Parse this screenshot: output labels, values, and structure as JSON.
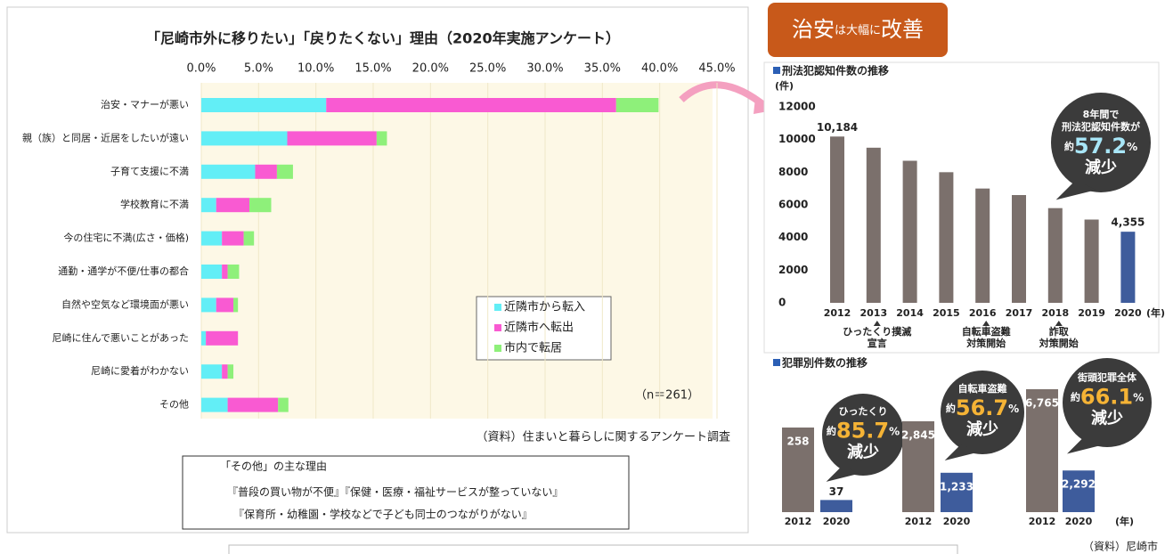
{
  "header": {
    "badge_main": "治安",
    "badge_small": "は大幅に",
    "badge_end": "改善"
  },
  "chart_data": [
    {
      "type": "bar",
      "orientation": "horizontal",
      "stacked": true,
      "title": "「尼崎市外に移りたい」「戻りたくない」理由（2020年実施アンケート）",
      "categories": [
        "治安・マナーが悪い",
        "親（族）と同居・近居をしたいが遠い",
        "子育て支援に不満",
        "学校教育に不満",
        "今の住宅に不満(広さ・価格)",
        "通勤・通学が不便/仕事の都合",
        "自然や空気など環境面が悪い",
        "尼崎に住んで悪いことがあった",
        "尼崎に愛着がわかない",
        "その他"
      ],
      "series": [
        {
          "name": "近隣市から転入",
          "color": "#62eef6",
          "values": [
            10.9,
            7.5,
            4.7,
            1.3,
            1.8,
            1.8,
            1.3,
            0.4,
            1.8,
            2.3
          ]
        },
        {
          "name": "近隣市へ転出",
          "color": "#f95ad2",
          "values": [
            25.3,
            7.8,
            1.9,
            2.9,
            1.9,
            0.5,
            1.5,
            2.8,
            0.5,
            4.4
          ]
        },
        {
          "name": "市内で転居",
          "color": "#8ef07a",
          "values": [
            3.7,
            0.9,
            1.4,
            1.9,
            0.9,
            1.0,
            0.4,
            0,
            0.5,
            0.9
          ]
        }
      ],
      "xlim": [
        0,
        45
      ],
      "xticks": [
        {
          "value": 0,
          "label": "0.0%"
        },
        {
          "value": 5,
          "label": "5.0%"
        },
        {
          "value": 10,
          "label": "10.0%"
        },
        {
          "value": 15,
          "label": "15.0%"
        },
        {
          "value": 20,
          "label": "20.0%"
        },
        {
          "value": 25,
          "label": "25.0%"
        },
        {
          "value": 30,
          "label": "30.0%"
        },
        {
          "value": 35,
          "label": "35.0%"
        },
        {
          "value": 40,
          "label": "40.0%"
        },
        {
          "value": 45,
          "label": "45.0%"
        }
      ],
      "annotation": "（n＝261）",
      "source": "（資料）住まいと暮らしに関するアンケート調査",
      "note": {
        "title": "「その他」の主な理由",
        "lines": [
          "『普段の買い物が不便』『保健・医療・福祉サービスが整っていない』",
          "『保育所・幼稚園・学校などで子ども同士のつながりがない』"
        ]
      }
    },
    {
      "type": "bar",
      "title": "刑法犯認知件数の推移",
      "y_unit": "(件)",
      "x_unit": "(年)",
      "categories": [
        "2012",
        "2013",
        "2014",
        "2015",
        "2016",
        "2017",
        "2018",
        "2019",
        "2020"
      ],
      "values": [
        10184,
        9500,
        8700,
        8000,
        7000,
        6600,
        5800,
        5100,
        4355
      ],
      "value_labels": [
        "10,184",
        null,
        null,
        null,
        null,
        null,
        null,
        null,
        "4,355"
      ],
      "colors": [
        "#7b706c",
        "#7b706c",
        "#7b706c",
        "#7b706c",
        "#7b706c",
        "#7b706c",
        "#7b706c",
        "#7b706c",
        "#3e5c9c"
      ],
      "ylim": [
        0,
        12000
      ],
      "yticks": [
        0,
        2000,
        4000,
        6000,
        8000,
        10000,
        12000
      ],
      "annotations": [
        {
          "at": "2013",
          "lines": [
            "ひったくり撲滅",
            "宣言"
          ]
        },
        {
          "at": "2016",
          "lines": [
            "自転車盗難",
            "対策開始"
          ]
        },
        {
          "at": "2018",
          "lines": [
            "詐取",
            "対策開始"
          ]
        }
      ],
      "bubble": {
        "lines": [
          "8年間で",
          "刑法犯認知件数が"
        ],
        "prefix": "約",
        "value": 57.2,
        "unit": "%",
        "label": "減少"
      }
    },
    {
      "type": "bar",
      "title": "犯罪別件数の推移",
      "x_unit": "(年)",
      "panels": [
        {
          "name": "ひったくり",
          "categories": [
            "2012",
            "2020"
          ],
          "values": [
            258,
            37
          ],
          "colors": [
            "#7b706c",
            "#3e5c9c"
          ],
          "reduction": {
            "prefix": "約",
            "value": 85.7,
            "unit": "%",
            "label": "減少"
          }
        },
        {
          "name": "自転車盗難",
          "categories": [
            "2012",
            "2020"
          ],
          "values": [
            2845,
            1233
          ],
          "value_labels": [
            "2,845",
            "1,233"
          ],
          "colors": [
            "#7b706c",
            "#3e5c9c"
          ],
          "reduction": {
            "prefix": "約",
            "value": 56.7,
            "unit": "%",
            "label": "減少"
          }
        },
        {
          "name": "街頭犯罪全体",
          "categories": [
            "2012",
            "2020"
          ],
          "values": [
            6765,
            2292
          ],
          "value_labels": [
            "6,765",
            "2,292"
          ],
          "colors": [
            "#7b706c",
            "#3e5c9c"
          ],
          "reduction": {
            "prefix": "約",
            "value": 66.1,
            "unit": "%",
            "label": "減少"
          }
        }
      ],
      "source": "（資料）尼崎市"
    }
  ]
}
